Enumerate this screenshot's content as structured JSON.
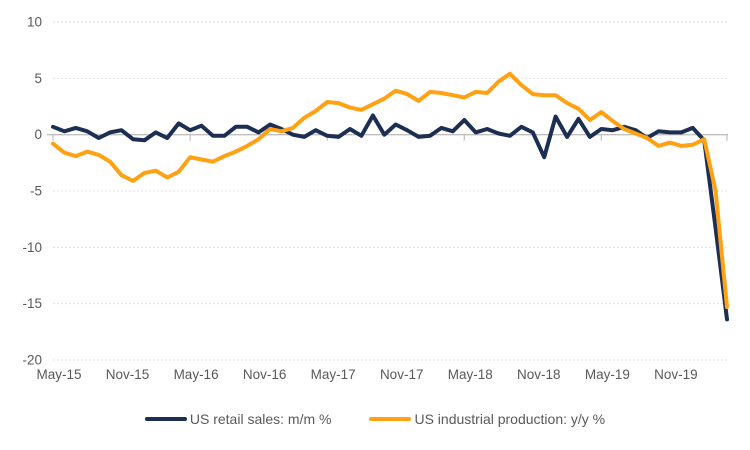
{
  "chart_data": {
    "type": "line",
    "title": "",
    "xlabel": "",
    "ylabel": "",
    "ylim": [
      -20,
      10
    ],
    "yticks": [
      10,
      5,
      0,
      -5,
      -10,
      -15,
      -20
    ],
    "x_tick_labels": [
      "May-15",
      "Nov-15",
      "May-16",
      "Nov-16",
      "May-17",
      "Nov-17",
      "May-18",
      "Nov-18",
      "May-19",
      "Nov-19"
    ],
    "x_tick_label_month_indices": [
      0,
      6,
      12,
      18,
      24,
      30,
      36,
      42,
      48,
      54
    ],
    "grid": "horizontal dotted gridlines, solid zero axis line",
    "legend_position": "bottom",
    "categories": [
      "May-15",
      "Jun-15",
      "Jul-15",
      "Aug-15",
      "Sep-15",
      "Oct-15",
      "Nov-15",
      "Dec-15",
      "Jan-16",
      "Feb-16",
      "Mar-16",
      "Apr-16",
      "May-16",
      "Jun-16",
      "Jul-16",
      "Aug-16",
      "Sep-16",
      "Oct-16",
      "Nov-16",
      "Dec-16",
      "Jan-17",
      "Feb-17",
      "Mar-17",
      "Apr-17",
      "May-17",
      "Jun-17",
      "Jul-17",
      "Aug-17",
      "Sep-17",
      "Oct-17",
      "Nov-17",
      "Dec-17",
      "Jan-18",
      "Feb-18",
      "Mar-18",
      "Apr-18",
      "May-18",
      "Jun-18",
      "Jul-18",
      "Aug-18",
      "Sep-18",
      "Oct-18",
      "Nov-18",
      "Dec-18",
      "Jan-19",
      "Feb-19",
      "Mar-19",
      "Apr-19",
      "May-19",
      "Jun-19",
      "Jul-19",
      "Aug-19",
      "Sep-19",
      "Oct-19",
      "Nov-19",
      "Dec-19",
      "Jan-20",
      "Feb-20",
      "Mar-20",
      "Apr-20"
    ],
    "series": [
      {
        "name": "US retail sales: m/m %",
        "color": "#1C2E52",
        "values": [
          0.7,
          0.3,
          0.6,
          0.3,
          -0.3,
          0.2,
          0.4,
          -0.4,
          -0.5,
          0.2,
          -0.3,
          1.0,
          0.4,
          0.8,
          -0.1,
          -0.1,
          0.7,
          0.7,
          0.2,
          0.9,
          0.5,
          0.0,
          -0.2,
          0.4,
          -0.1,
          -0.2,
          0.5,
          -0.1,
          1.7,
          0.0,
          0.9,
          0.4,
          -0.2,
          -0.1,
          0.6,
          0.3,
          1.3,
          0.2,
          0.5,
          0.1,
          -0.1,
          0.7,
          0.2,
          -2.0,
          1.6,
          -0.2,
          1.4,
          -0.2,
          0.5,
          0.4,
          0.7,
          0.4,
          -0.3,
          0.3,
          0.2,
          0.2,
          0.6,
          -0.5,
          -8.3,
          -16.4
        ]
      },
      {
        "name": "US industrial production: y/y %",
        "color": "#FFA112",
        "values": [
          -0.8,
          -1.6,
          -1.9,
          -1.5,
          -1.8,
          -2.4,
          -3.6,
          -4.1,
          -3.4,
          -3.2,
          -3.8,
          -3.3,
          -2.0,
          -2.2,
          -2.4,
          -1.9,
          -1.5,
          -1.0,
          -0.4,
          0.5,
          0.3,
          0.6,
          1.5,
          2.1,
          2.9,
          2.8,
          2.4,
          2.2,
          2.7,
          3.2,
          3.9,
          3.6,
          3.0,
          3.8,
          3.7,
          3.5,
          3.3,
          3.8,
          3.7,
          4.7,
          5.4,
          4.4,
          3.6,
          3.5,
          3.5,
          2.8,
          2.3,
          1.3,
          2.0,
          1.2,
          0.5,
          0.1,
          -0.3,
          -1.0,
          -0.7,
          -1.0,
          -0.9,
          -0.4,
          -5.0,
          -15.3
        ]
      }
    ]
  },
  "legend": {
    "items": [
      {
        "label": "US retail sales: m/m %",
        "color": "#1C2E52"
      },
      {
        "label": "US industrial production: y/y %",
        "color": "#FFA112"
      }
    ]
  },
  "style": {
    "gridline_color": "#d4d4d4",
    "zero_axis_color": "#bfbfbf",
    "tick_color": "#bfbfbf",
    "axis_text_color": "#595959",
    "background": "#ffffff"
  }
}
